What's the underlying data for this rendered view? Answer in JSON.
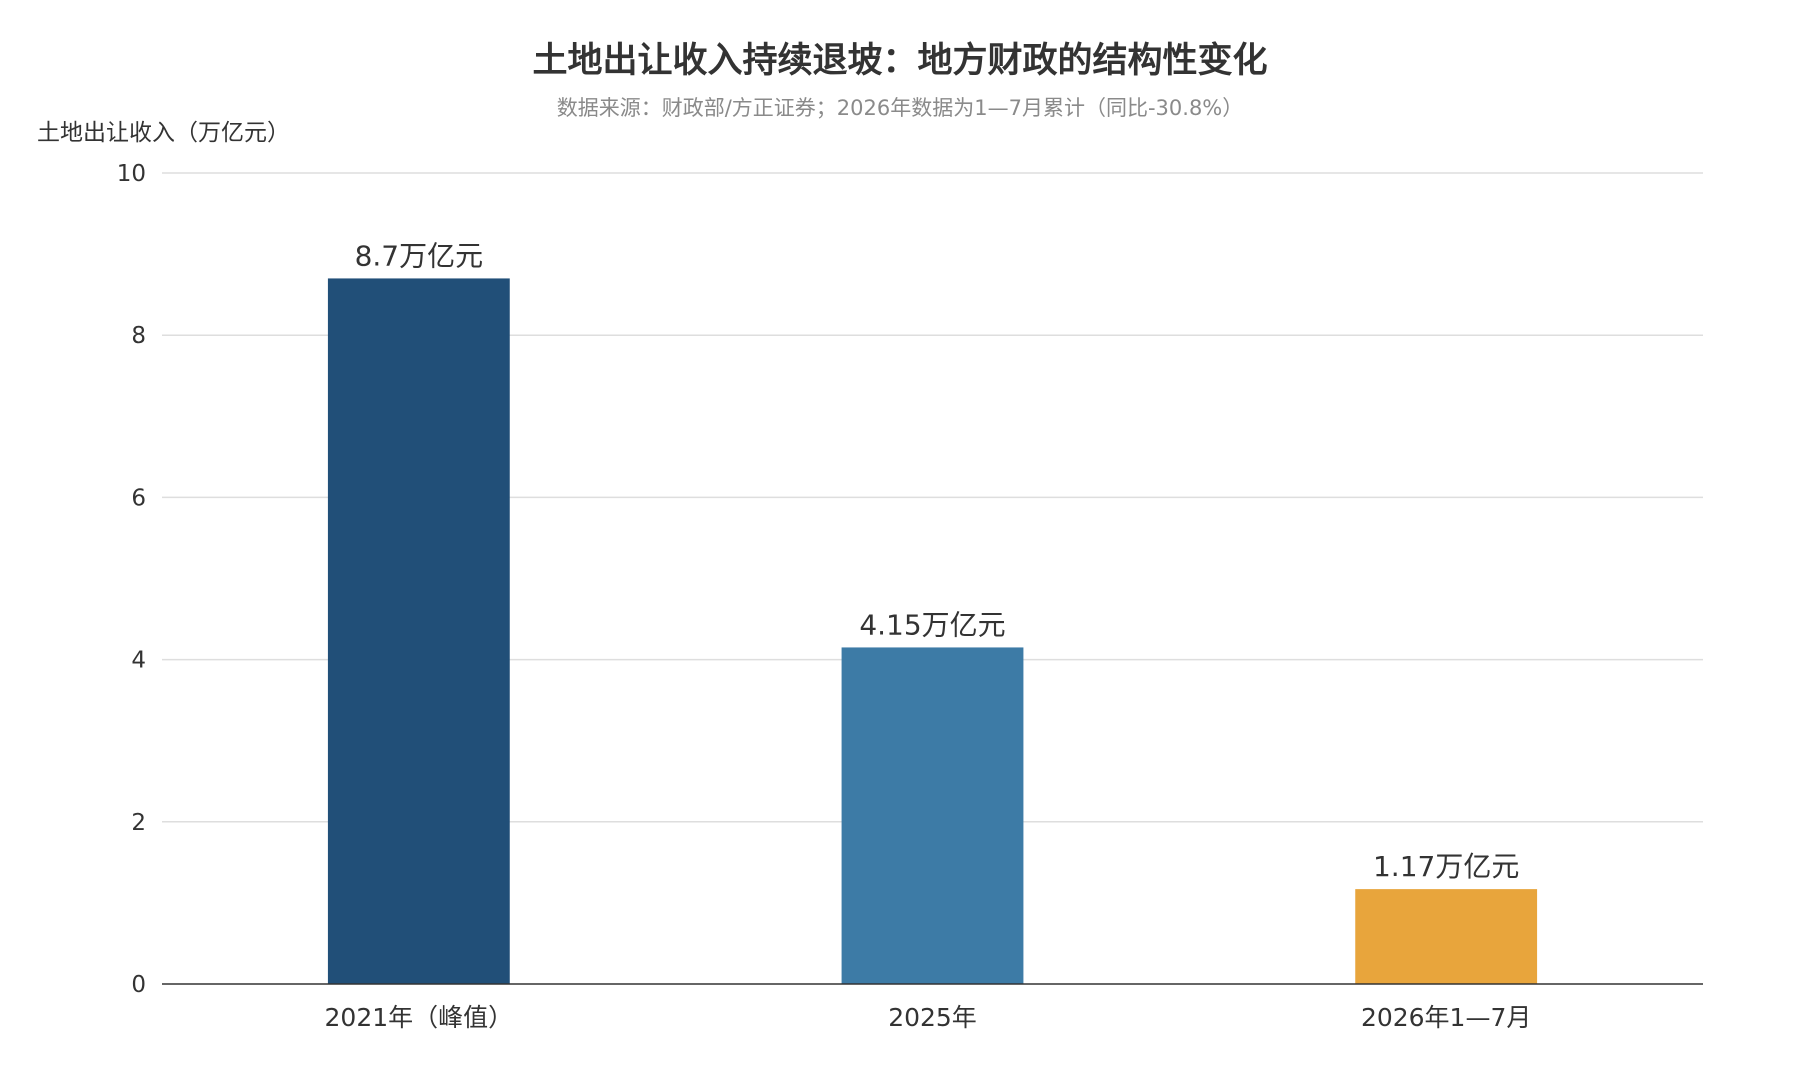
{
  "chart_data": {
    "type": "bar",
    "title": "土地出让收入持续退坡：地方财政的结构性变化",
    "subtitle": "数据来源：财政部/方正证券；2026年数据为1—7月累计（同比-30.8%）",
    "ylabel": "土地出让收入（万亿元）",
    "xlabel": "",
    "ylim": [
      0,
      10
    ],
    "yticks": [
      0,
      2,
      4,
      6,
      8,
      10
    ],
    "grid": true,
    "categories": [
      "2021年（峰值）",
      "2025年",
      "2026年1—7月"
    ],
    "values": [
      8.7,
      4.15,
      1.17
    ],
    "data_labels": [
      "8.7万亿元",
      "4.15万亿元",
      "1.17万亿元"
    ],
    "colors": [
      "#214f78",
      "#3d7ba6",
      "#e8a53c"
    ]
  }
}
